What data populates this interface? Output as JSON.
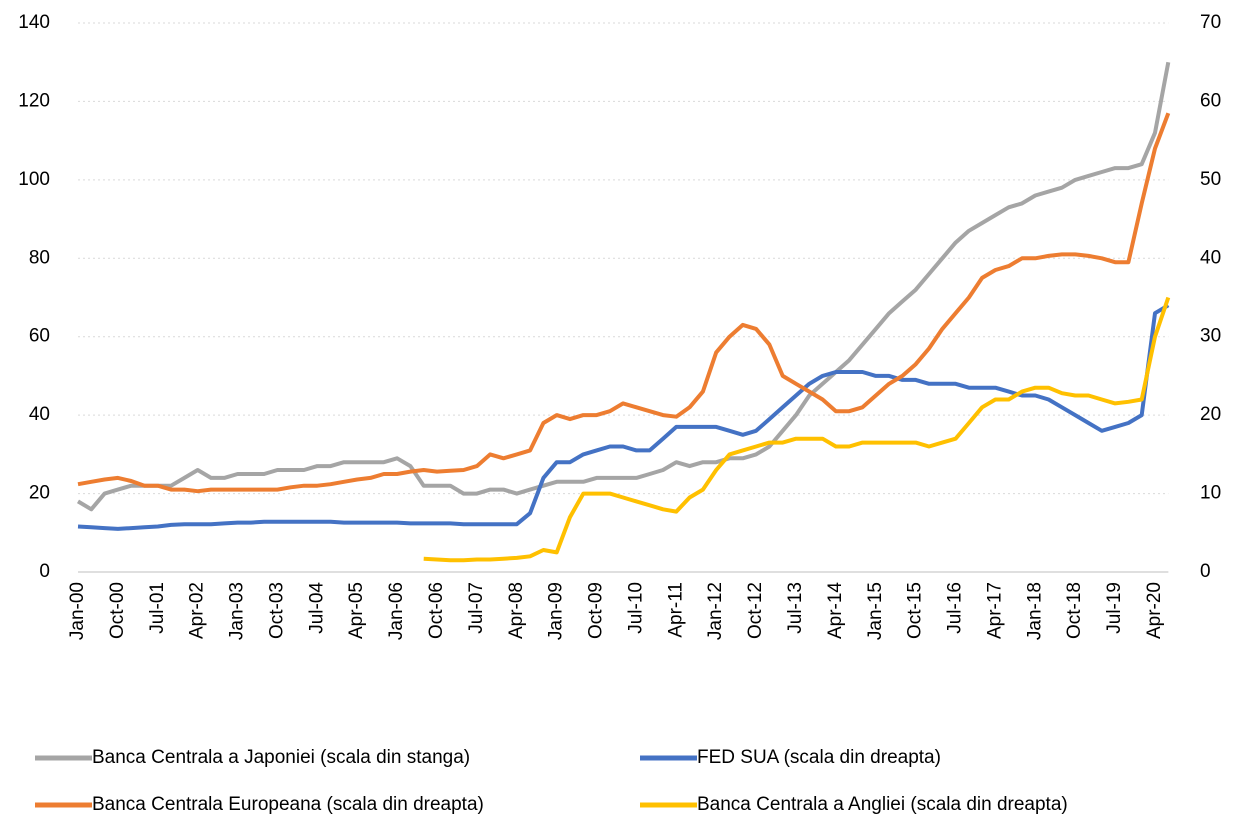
{
  "chart_data": {
    "type": "line",
    "categories": [
      "Jan-00",
      null,
      null,
      "Oct-00",
      null,
      null,
      "Jul-01",
      null,
      null,
      "Apr-02",
      null,
      null,
      "Jan-03",
      null,
      null,
      "Oct-03",
      null,
      null,
      "Jul-04",
      null,
      null,
      "Apr-05",
      null,
      null,
      "Jan-06",
      null,
      null,
      "Oct-06",
      null,
      null,
      "Jul-07",
      null,
      null,
      "Apr-08",
      null,
      null,
      "Jan-09",
      null,
      null,
      "Oct-09",
      null,
      null,
      "Jul-10",
      null,
      null,
      "Apr-11",
      null,
      null,
      "Jan-12",
      null,
      null,
      "Oct-12",
      null,
      null,
      "Jul-13",
      null,
      null,
      "Apr-14",
      null,
      null,
      "Jan-15",
      null,
      null,
      "Oct-15",
      null,
      null,
      "Jul-16",
      null,
      null,
      "Apr-17",
      null,
      null,
      "Jan-18",
      null,
      null,
      "Oct-18",
      null,
      null,
      "Jul-19",
      null,
      null,
      "Apr-20",
      null
    ],
    "ylim": [
      0,
      140
    ],
    "yticks": [
      0,
      20,
      40,
      60,
      80,
      100,
      120,
      140
    ],
    "y2lim": [
      0,
      70
    ],
    "y2ticks": [
      0,
      10,
      20,
      30,
      40,
      50,
      60,
      70
    ],
    "grid": true,
    "series": [
      {
        "name": "Banca Centrala a Japoniei (scala din stanga)",
        "color": "#a5a5a5",
        "axis": "y",
        "values": [
          18,
          16,
          20,
          21,
          22,
          22,
          22,
          22,
          24,
          26,
          24,
          24,
          25,
          25,
          25,
          26,
          26,
          26,
          27,
          27,
          28,
          28,
          28,
          28,
          29,
          27,
          22,
          22,
          22,
          20,
          20,
          21,
          21,
          20,
          21,
          22,
          23,
          23,
          23,
          24,
          24,
          24,
          24,
          25,
          26,
          28,
          27,
          28,
          28,
          29,
          29,
          30,
          32,
          36,
          40,
          45,
          48,
          51,
          54,
          58,
          62,
          66,
          69,
          72,
          76,
          80,
          84,
          87,
          89,
          91,
          93,
          94,
          96,
          97,
          98,
          100,
          101,
          102,
          103,
          103,
          104,
          112,
          130
        ]
      },
      {
        "name": "FED SUA (scala  din dreapta)",
        "color": "#4472c4",
        "axis": "y2",
        "values": [
          5.8,
          5.7,
          5.6,
          5.5,
          5.6,
          5.7,
          5.8,
          6,
          6.1,
          6.1,
          6.1,
          6.2,
          6.3,
          6.3,
          6.4,
          6.4,
          6.4,
          6.4,
          6.4,
          6.4,
          6.3,
          6.3,
          6.3,
          6.3,
          6.3,
          6.2,
          6.2,
          6.2,
          6.2,
          6.1,
          6.1,
          6.1,
          6.1,
          6.1,
          7.5,
          12,
          14,
          14,
          15,
          15.5,
          16,
          16,
          15.5,
          15.5,
          17,
          18.5,
          18.5,
          18.5,
          18.5,
          18,
          17.5,
          18,
          19.5,
          21,
          22.5,
          24,
          25,
          25.5,
          25.5,
          25.5,
          25,
          25,
          24.5,
          24.5,
          24,
          24,
          24,
          23.5,
          23.5,
          23.5,
          23,
          22.5,
          22.5,
          22,
          21,
          20,
          19,
          18,
          18.5,
          19,
          20,
          33,
          34
        ]
      },
      {
        "name": "Banca Centrala Europeana (scala din dreapta)",
        "color": "#ed7d31",
        "axis": "y2",
        "values": [
          11.2,
          11.5,
          11.8,
          12,
          11.6,
          11,
          11,
          10.5,
          10.5,
          10.3,
          10.5,
          10.5,
          10.5,
          10.5,
          10.5,
          10.5,
          10.8,
          11,
          11,
          11.2,
          11.5,
          11.8,
          12,
          12.5,
          12.5,
          12.8,
          13,
          12.8,
          12.9,
          13,
          13.5,
          15,
          14.5,
          15,
          15.5,
          19,
          20,
          19.5,
          20,
          20,
          20.5,
          21.5,
          21,
          20.5,
          20,
          19.8,
          21,
          23,
          28,
          30,
          31.5,
          31,
          29,
          25,
          24,
          23,
          22,
          20.5,
          20.5,
          21,
          22.5,
          24,
          25,
          26.5,
          28.5,
          31,
          33,
          35,
          37.5,
          38.5,
          39,
          40,
          40,
          40.3,
          40.5,
          40.5,
          40.3,
          40,
          39.5,
          39.5,
          47,
          54,
          58.5
        ]
      },
      {
        "name": "Banca Centrala a Angliei (scala din dreapta)",
        "color": "#ffc000",
        "axis": "y2",
        "values": [
          null,
          null,
          null,
          null,
          null,
          null,
          null,
          null,
          null,
          null,
          null,
          null,
          null,
          null,
          null,
          null,
          null,
          null,
          null,
          null,
          null,
          null,
          null,
          null,
          null,
          null,
          1.7,
          1.6,
          1.5,
          1.5,
          1.6,
          1.6,
          1.7,
          1.8,
          2,
          2.8,
          2.5,
          7,
          10,
          10,
          10,
          9.5,
          9,
          8.5,
          8,
          7.7,
          9.5,
          10.5,
          13,
          15,
          15.5,
          16,
          16.5,
          16.5,
          17,
          17,
          17,
          16,
          16,
          16.5,
          16.5,
          16.5,
          16.5,
          16.5,
          16,
          16.5,
          17,
          19,
          21,
          22,
          22,
          23,
          23.5,
          23.5,
          22.8,
          22.5,
          22.5,
          22,
          21.5,
          21.7,
          22,
          30,
          35
        ]
      }
    ]
  }
}
